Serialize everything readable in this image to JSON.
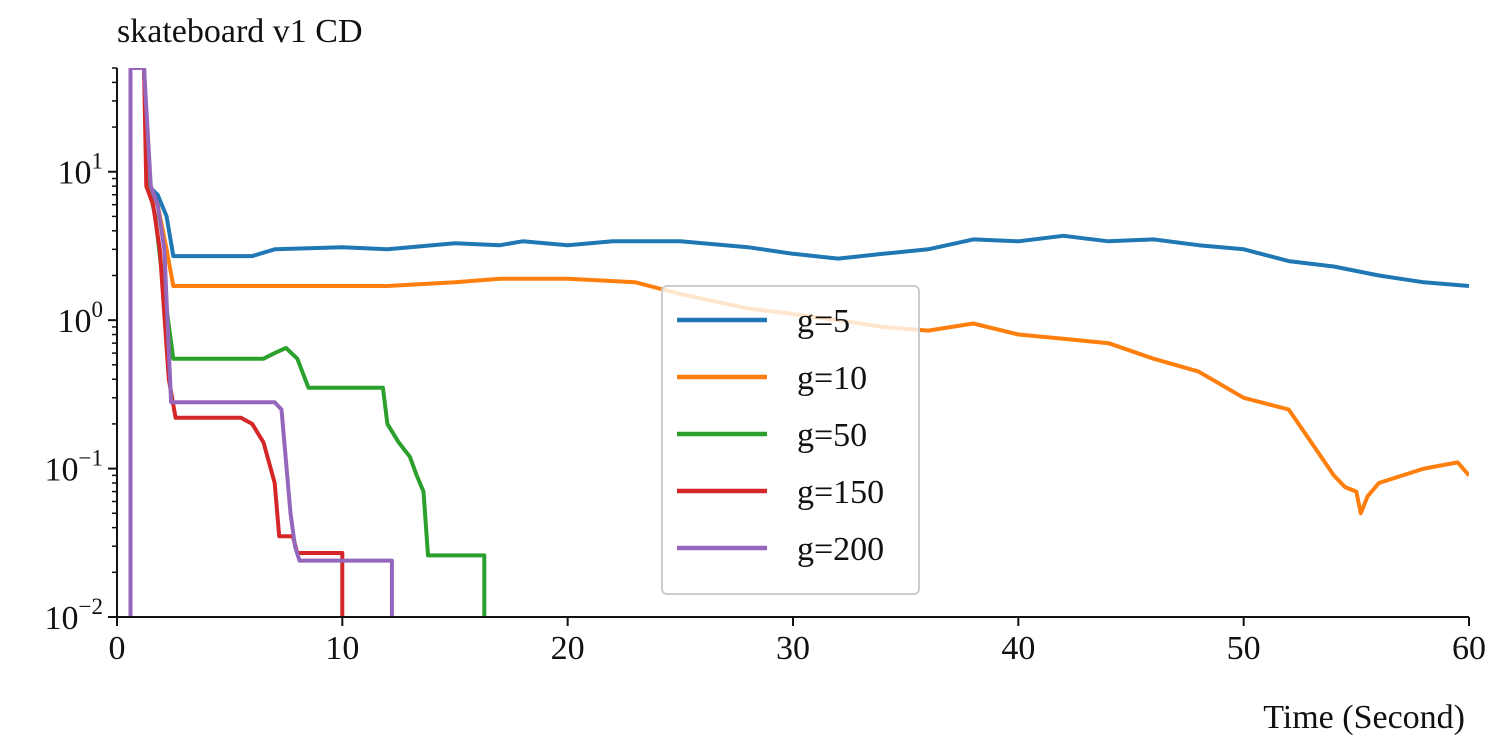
{
  "chart_data": {
    "type": "line",
    "title": "skateboard v1 CD",
    "xlabel": "Time (Second)",
    "ylabel": "",
    "xlim": [
      0,
      60
    ],
    "ylim": [
      0.01,
      50
    ],
    "yscale": "log",
    "x_ticks": [
      0,
      10,
      20,
      30,
      40,
      50,
      60
    ],
    "x_tick_labels": [
      "0",
      "10",
      "20",
      "30",
      "40",
      "50",
      "60"
    ],
    "y_ticks": [
      {
        "value": 0.01,
        "base": "10",
        "exp": "−2"
      },
      {
        "value": 0.1,
        "base": "10",
        "exp": "−1"
      },
      {
        "value": 1,
        "base": "10",
        "exp": "0"
      },
      {
        "value": 10,
        "base": "10",
        "exp": "1"
      }
    ],
    "grid": false,
    "legend_position": "center",
    "series": [
      {
        "name": "g=5",
        "color": "#1f77b4",
        "points": [
          [
            0.6,
            0.005
          ],
          [
            0.6,
            50
          ],
          [
            1.2,
            50
          ],
          [
            1.4,
            8
          ],
          [
            1.8,
            7
          ],
          [
            2.2,
            5
          ],
          [
            2.5,
            2.7
          ],
          [
            6,
            2.7
          ],
          [
            7,
            3.0
          ],
          [
            10,
            3.1
          ],
          [
            12,
            3.0
          ],
          [
            15,
            3.3
          ],
          [
            17,
            3.2
          ],
          [
            18,
            3.4
          ],
          [
            20,
            3.2
          ],
          [
            22,
            3.4
          ],
          [
            25,
            3.4
          ],
          [
            28,
            3.1
          ],
          [
            30,
            2.8
          ],
          [
            32,
            2.6
          ],
          [
            34,
            2.8
          ],
          [
            36,
            3.0
          ],
          [
            38,
            3.5
          ],
          [
            40,
            3.4
          ],
          [
            42,
            3.7
          ],
          [
            44,
            3.4
          ],
          [
            46,
            3.5
          ],
          [
            48,
            3.2
          ],
          [
            50,
            3.0
          ],
          [
            52,
            2.5
          ],
          [
            54,
            2.3
          ],
          [
            56,
            2.0
          ],
          [
            58,
            1.8
          ],
          [
            60,
            1.7
          ]
        ]
      },
      {
        "name": "g=10",
        "color": "#ff7f0e",
        "points": [
          [
            0.6,
            0.005
          ],
          [
            0.6,
            50
          ],
          [
            1.2,
            50
          ],
          [
            1.4,
            8
          ],
          [
            1.8,
            6
          ],
          [
            2.2,
            3
          ],
          [
            2.5,
            1.7
          ],
          [
            6,
            1.7
          ],
          [
            8,
            1.7
          ],
          [
            10,
            1.7
          ],
          [
            12,
            1.7
          ],
          [
            15,
            1.8
          ],
          [
            17,
            1.9
          ],
          [
            20,
            1.9
          ],
          [
            23,
            1.8
          ],
          [
            25,
            1.5
          ],
          [
            28,
            1.2
          ],
          [
            30,
            1.1
          ],
          [
            32,
            1.0
          ],
          [
            34,
            0.9
          ],
          [
            36,
            0.85
          ],
          [
            38,
            0.95
          ],
          [
            40,
            0.8
          ],
          [
            42,
            0.75
          ],
          [
            44,
            0.7
          ],
          [
            46,
            0.55
          ],
          [
            48,
            0.45
          ],
          [
            50,
            0.3
          ],
          [
            52,
            0.25
          ],
          [
            53,
            0.15
          ],
          [
            54,
            0.09
          ],
          [
            54.5,
            0.075
          ],
          [
            55,
            0.07
          ],
          [
            55.2,
            0.05
          ],
          [
            55.5,
            0.065
          ],
          [
            56,
            0.08
          ],
          [
            58,
            0.1
          ],
          [
            59.5,
            0.11
          ],
          [
            60,
            0.09
          ]
        ]
      },
      {
        "name": "g=50",
        "color": "#2ca02c",
        "points": [
          [
            0.6,
            0.005
          ],
          [
            0.6,
            50
          ],
          [
            1.2,
            50
          ],
          [
            1.4,
            8
          ],
          [
            1.7,
            5
          ],
          [
            2.0,
            2
          ],
          [
            2.5,
            0.55
          ],
          [
            6.5,
            0.55
          ],
          [
            7,
            0.6
          ],
          [
            7.5,
            0.65
          ],
          [
            8,
            0.55
          ],
          [
            8.5,
            0.35
          ],
          [
            11.8,
            0.35
          ],
          [
            12,
            0.2
          ],
          [
            12.5,
            0.15
          ],
          [
            13,
            0.12
          ],
          [
            13.3,
            0.09
          ],
          [
            13.6,
            0.07
          ],
          [
            13.8,
            0.026
          ],
          [
            16.3,
            0.026
          ],
          [
            16.3,
            0.005
          ]
        ]
      },
      {
        "name": "g=150",
        "color": "#d62728",
        "points": [
          [
            0.6,
            0.005
          ],
          [
            0.6,
            50
          ],
          [
            1.2,
            50
          ],
          [
            1.3,
            8
          ],
          [
            1.6,
            6
          ],
          [
            1.9,
            3
          ],
          [
            2.3,
            0.4
          ],
          [
            2.6,
            0.22
          ],
          [
            5.5,
            0.22
          ],
          [
            6.0,
            0.2
          ],
          [
            6.5,
            0.15
          ],
          [
            7.0,
            0.08
          ],
          [
            7.2,
            0.035
          ],
          [
            7.8,
            0.035
          ],
          [
            8.0,
            0.027
          ],
          [
            10.0,
            0.027
          ],
          [
            10.0,
            0.005
          ]
        ]
      },
      {
        "name": "g=200",
        "color": "#9467bd",
        "points": [
          [
            0.6,
            0.005
          ],
          [
            0.6,
            50
          ],
          [
            1.2,
            50
          ],
          [
            1.5,
            8
          ],
          [
            1.8,
            6
          ],
          [
            2.1,
            3
          ],
          [
            2.4,
            0.28
          ],
          [
            7.0,
            0.28
          ],
          [
            7.3,
            0.25
          ],
          [
            7.7,
            0.05
          ],
          [
            7.9,
            0.03
          ],
          [
            8.1,
            0.024
          ],
          [
            12.2,
            0.024
          ],
          [
            12.2,
            0.005
          ]
        ]
      }
    ]
  }
}
